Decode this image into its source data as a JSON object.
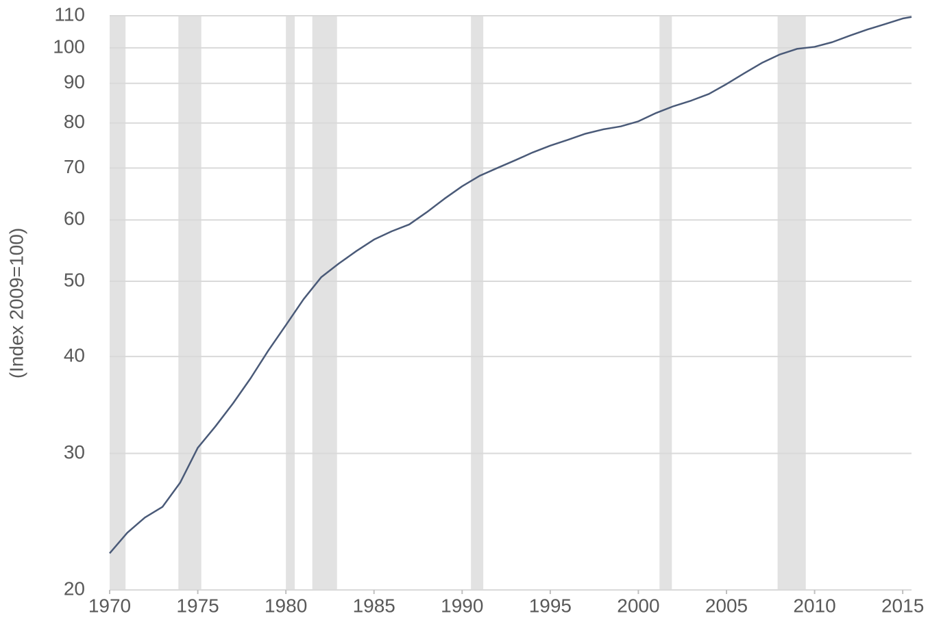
{
  "chart_data": {
    "type": "line",
    "y_label": "(Index 2009=100)",
    "x": [
      1970,
      1971,
      1972,
      1973,
      1974,
      1975,
      1976,
      1977,
      1978,
      1979,
      1980,
      1981,
      1982,
      1983,
      1984,
      1985,
      1986,
      1987,
      1988,
      1989,
      1990,
      1991,
      1992,
      1993,
      1994,
      1995,
      1996,
      1997,
      1998,
      1999,
      2000,
      2001,
      2002,
      2003,
      2004,
      2005,
      2006,
      2007,
      2008,
      2009,
      2010,
      2011,
      2012,
      2013,
      2014,
      2015,
      2015.5
    ],
    "values": [
      22.3,
      23.7,
      24.8,
      25.6,
      27.5,
      30.5,
      32.5,
      34.8,
      37.5,
      40.7,
      43.9,
      47.4,
      50.6,
      52.7,
      54.7,
      56.6,
      58.0,
      59.2,
      61.4,
      63.9,
      66.3,
      68.4,
      70.0,
      71.6,
      73.3,
      74.8,
      76.1,
      77.5,
      78.5,
      79.2,
      80.4,
      82.4,
      84.1,
      85.5,
      87.2,
      89.8,
      92.7,
      95.6,
      98.0,
      99.7,
      100.3,
      101.7,
      103.7,
      105.6,
      107.3,
      109.1,
      109.6
    ],
    "color": "#4a5a78",
    "recessions": [
      [
        1970,
        1970.9
      ],
      [
        1973.9,
        1975.2
      ],
      [
        1980,
        1980.5
      ],
      [
        1981.5,
        1982.9
      ],
      [
        1990.5,
        1991.2
      ],
      [
        2001.2,
        2001.9
      ],
      [
        2007.9,
        2009.5
      ]
    ],
    "recession_color": "#e2e2e2",
    "xlim": [
      1970,
      2015.5
    ],
    "xticks": [
      1970,
      1975,
      1980,
      1985,
      1990,
      1995,
      2000,
      2005,
      2010,
      2015
    ],
    "ylim": [
      20,
      110
    ],
    "yticks": [
      20,
      30,
      40,
      50,
      60,
      70,
      80,
      90,
      100,
      110
    ],
    "log_scale_y": true,
    "grid": true
  }
}
